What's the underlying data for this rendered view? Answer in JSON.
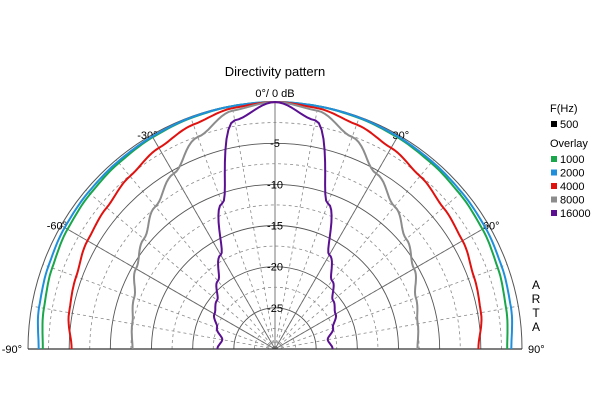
{
  "chart_data": {
    "type": "polar",
    "title": "Directivity pattern",
    "top_label": "0°/ 0 dB",
    "radial_unit": "dB",
    "radial_range": [
      -30,
      0
    ],
    "radial_ticks": [
      "-5",
      "-10",
      "-15",
      "-20",
      "-25"
    ],
    "angle_range_deg": [
      -90,
      90
    ],
    "angle_ticks": [
      {
        "deg": -90,
        "label": "-90°"
      },
      {
        "deg": -60,
        "label": "-60°"
      },
      {
        "deg": -30,
        "label": "-30°"
      },
      {
        "deg": 30,
        "label": "30°"
      },
      {
        "deg": 60,
        "label": "60°"
      },
      {
        "deg": 90,
        "label": "90°"
      }
    ],
    "grid": true,
    "watermark": "ARTA",
    "legend": {
      "position": "right",
      "freq_header": "F(Hz)",
      "reference": {
        "name": "500",
        "color": "#000000"
      },
      "overlay_header": "Overlay",
      "overlay": [
        {
          "name": "1000",
          "color": "#1aa64a"
        },
        {
          "name": "2000",
          "color": "#1f8fdc"
        },
        {
          "name": "4000",
          "color": "#e0120f"
        },
        {
          "name": "8000",
          "color": "#8c8c8c"
        },
        {
          "name": "16000",
          "color": "#5a1090"
        }
      ]
    },
    "series": [
      {
        "name": "1000",
        "color": "#1aa64a",
        "angles": [
          -90,
          -80,
          -70,
          -60,
          -50,
          -40,
          -30,
          -20,
          -10,
          0,
          10,
          20,
          30,
          40,
          50,
          60,
          70,
          80,
          90
        ],
        "values": [
          -1.8,
          -1.5,
          -1.2,
          -0.9,
          -0.7,
          -0.5,
          -0.3,
          -0.15,
          -0.05,
          0,
          -0.05,
          -0.15,
          -0.3,
          -0.5,
          -0.7,
          -0.9,
          -1.2,
          -1.5,
          -1.8
        ]
      },
      {
        "name": "2000",
        "color": "#1f8fdc",
        "angles": [
          -90,
          -80,
          -70,
          -60,
          -50,
          -40,
          -30,
          -20,
          -10,
          0,
          10,
          20,
          30,
          40,
          50,
          60,
          70,
          80,
          90
        ],
        "values": [
          -1.3,
          -0.9,
          -0.7,
          -0.5,
          -0.4,
          -0.3,
          -0.2,
          -0.1,
          -0.05,
          0,
          -0.05,
          -0.1,
          -0.2,
          -0.3,
          -0.4,
          -0.5,
          -0.7,
          -0.9,
          -1.3
        ]
      },
      {
        "name": "4000",
        "color": "#e0120f",
        "angles": [
          -90,
          -80,
          -70,
          -60,
          -50,
          -40,
          -30,
          -20,
          -10,
          0,
          10,
          20,
          30,
          40,
          50,
          60,
          70,
          80,
          90
        ],
        "values": [
          -5.3,
          -4.6,
          -4.3,
          -3.7,
          -3.3,
          -2.6,
          -1.8,
          -1.0,
          -0.3,
          0,
          -0.3,
          -1.0,
          -1.8,
          -2.6,
          -3.3,
          -3.7,
          -4.3,
          -4.6,
          -5.3
        ]
      },
      {
        "name": "8000",
        "color": "#8c8c8c",
        "angles": [
          -90,
          -80,
          -70,
          -60,
          -50,
          -40,
          -30,
          -20,
          -10,
          0,
          10,
          20,
          30,
          40,
          50,
          60,
          70,
          80,
          90
        ],
        "values": [
          -12.7,
          -12.4,
          -11.8,
          -10.5,
          -9.2,
          -7.4,
          -5.4,
          -2.6,
          -0.6,
          0,
          -0.6,
          -2.6,
          -5.4,
          -7.4,
          -9.2,
          -10.5,
          -11.8,
          -12.4,
          -12.7
        ]
      },
      {
        "name": "16000",
        "color": "#5a1090",
        "angles": [
          -90,
          -80,
          -70,
          -60,
          -50,
          -40,
          -30,
          -20,
          -10,
          0,
          10,
          20,
          30,
          40,
          50,
          60,
          70,
          80,
          90
        ],
        "values": [
          -23.0,
          -23.5,
          -22.5,
          -21.5,
          -20.8,
          -19.2,
          -16.8,
          -11.2,
          -1.8,
          0,
          -1.8,
          -11.2,
          -16.8,
          -19.2,
          -20.8,
          -21.5,
          -22.5,
          -23.5,
          -23.0
        ]
      }
    ]
  }
}
